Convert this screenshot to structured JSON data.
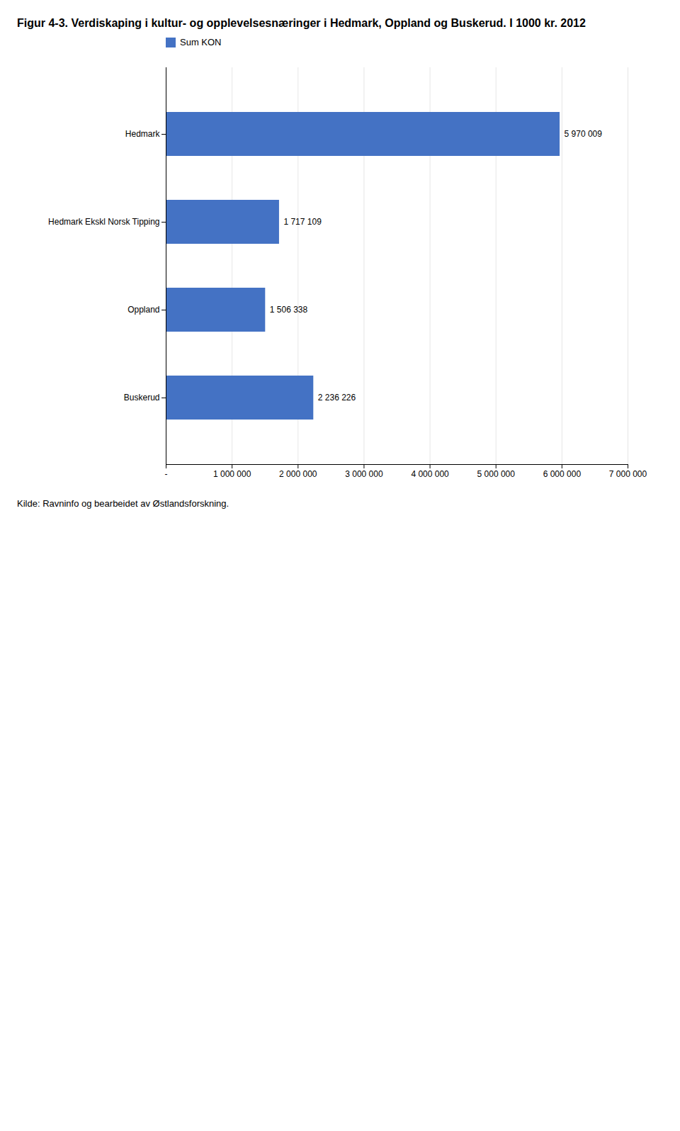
{
  "chart_data": {
    "type": "bar",
    "orientation": "horizontal",
    "title": "Figur 4-3. Verdiskaping i kultur- og opplevelsesnæringer i Hedmark, Oppland og Buskerud. I 1000 kr. 2012",
    "annotations": [
      "Kilde: Ravninfo og bearbeidet av Østlandsforskning."
    ],
    "categories": [
      "Hedmark",
      "Hedmark Ekskl Norsk Tipping",
      "Oppland",
      "Buskerud"
    ],
    "series": [
      {
        "name": "Sum KON",
        "color": "#4472C4",
        "values": [
          5970009,
          1717109,
          1506338,
          2236226
        ]
      }
    ],
    "value_labels": [
      "5 970 009",
      "1 717 109",
      "1 506 338",
      "2 236 226"
    ],
    "data_labels": true,
    "xlim": [
      0,
      7000000
    ],
    "xticks": [
      {
        "value": 0,
        "label": "-"
      },
      {
        "value": 1000000,
        "label": "1 000 000"
      },
      {
        "value": 2000000,
        "label": "2 000 000"
      },
      {
        "value": 3000000,
        "label": "3 000 000"
      },
      {
        "value": 4000000,
        "label": "4 000 000"
      },
      {
        "value": 5000000,
        "label": "5 000 000"
      },
      {
        "value": 6000000,
        "label": "6 000 000"
      },
      {
        "value": 7000000,
        "label": "7 000 000"
      }
    ],
    "grid": true
  }
}
